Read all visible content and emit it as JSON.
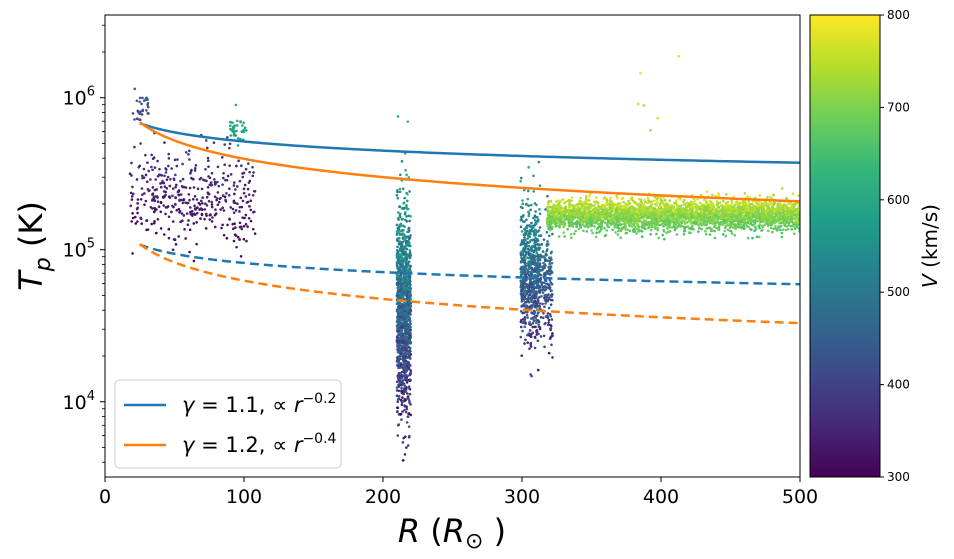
{
  "chart_data": {
    "type": "scatter",
    "xlabel": "R (R⊙)",
    "ylabel": "Tp (K)",
    "xscale": "linear",
    "yscale": "log",
    "xlim": [
      0,
      500
    ],
    "ylim": [
      3200,
      3500000
    ],
    "x_ticks": [
      {
        "value": 0,
        "label": "0"
      },
      {
        "value": 100,
        "label": "100"
      },
      {
        "value": 200,
        "label": "200"
      },
      {
        "value": 300,
        "label": "300"
      },
      {
        "value": 400,
        "label": "400"
      },
      {
        "value": 500,
        "label": "500"
      }
    ],
    "y_ticks": [
      {
        "value": 10000,
        "base": "10",
        "exp": "4"
      },
      {
        "value": 100000,
        "base": "10",
        "exp": "5"
      },
      {
        "value": 1000000,
        "base": "10",
        "exp": "6"
      }
    ],
    "colorbar": {
      "label": "V (km/s)",
      "min": 300,
      "max": 800,
      "ticks": [
        300,
        400,
        500,
        600,
        700,
        800
      ],
      "colormap": "viridis",
      "stops": [
        "#440154",
        "#482878",
        "#3e4989",
        "#31688e",
        "#26828e",
        "#1f9e89",
        "#35b779",
        "#6ece58",
        "#b5de2b",
        "#fde725"
      ]
    },
    "lines": [
      {
        "name": "gamma=1.1 hot",
        "style": "solid",
        "color": "#1f77b4",
        "A": 680000,
        "x0": 25,
        "exponent": -0.2,
        "x_range": [
          25,
          500
        ]
      },
      {
        "name": "gamma=1.2 hot",
        "style": "solid",
        "color": "#ff7f0e",
        "A": 690000,
        "x0": 25,
        "exponent": -0.4,
        "x_range": [
          25,
          500
        ]
      },
      {
        "name": "gamma=1.1 cool",
        "style": "dashed",
        "color": "#1f77b4",
        "A": 108000,
        "x0": 25,
        "exponent": -0.2,
        "x_range": [
          25,
          500
        ]
      },
      {
        "name": "gamma=1.2 cool",
        "style": "dashed",
        "color": "#ff7f0e",
        "A": 109000,
        "x0": 25,
        "exponent": -0.4,
        "x_range": [
          25,
          500
        ]
      }
    ],
    "legend": {
      "placement": "lower-left",
      "entries": [
        {
          "color": "#1f77b4",
          "gamma": "1.1",
          "exponent": "−0.2"
        },
        {
          "color": "#ff7f0e",
          "gamma": "1.2",
          "exponent": "−0.4"
        }
      ]
    },
    "scatter_groups": [
      {
        "x_range": [
          18,
          108
        ],
        "t_center": 230000,
        "t_spread": 0.28,
        "v_range": [
          300,
          390
        ],
        "count": 420
      },
      {
        "x_range": [
          90,
          102
        ],
        "t_center": 600000,
        "t_spread": 0.1,
        "v_range": [
          560,
          620
        ],
        "count": 40
      },
      {
        "x_range": [
          20,
          32
        ],
        "t_center": 850000,
        "t_spread": 0.12,
        "v_range": [
          380,
          470
        ],
        "count": 30
      },
      {
        "x_range": [
          210,
          220
        ],
        "t_center": 40000,
        "t_spread": 0.65,
        "v_range": [
          300,
          640
        ],
        "count": 1300
      },
      {
        "x_range": [
          299,
          313
        ],
        "t_center": 70000,
        "t_spread": 0.45,
        "v_range": [
          320,
          620
        ],
        "count": 650
      },
      {
        "x_range": [
          313,
          322
        ],
        "t_center": 60000,
        "t_spread": 0.4,
        "v_range": [
          330,
          560
        ],
        "count": 180
      },
      {
        "x_range": [
          318,
          500
        ],
        "t_center": 170000,
        "t_spread": 0.1,
        "v_range": [
          640,
          790
        ],
        "count": 3200
      },
      {
        "x_range": [
          370,
          440
        ],
        "t_center": 900000,
        "t_spread": 0.35,
        "v_range": [
          700,
          790
        ],
        "count": 6
      }
    ]
  }
}
